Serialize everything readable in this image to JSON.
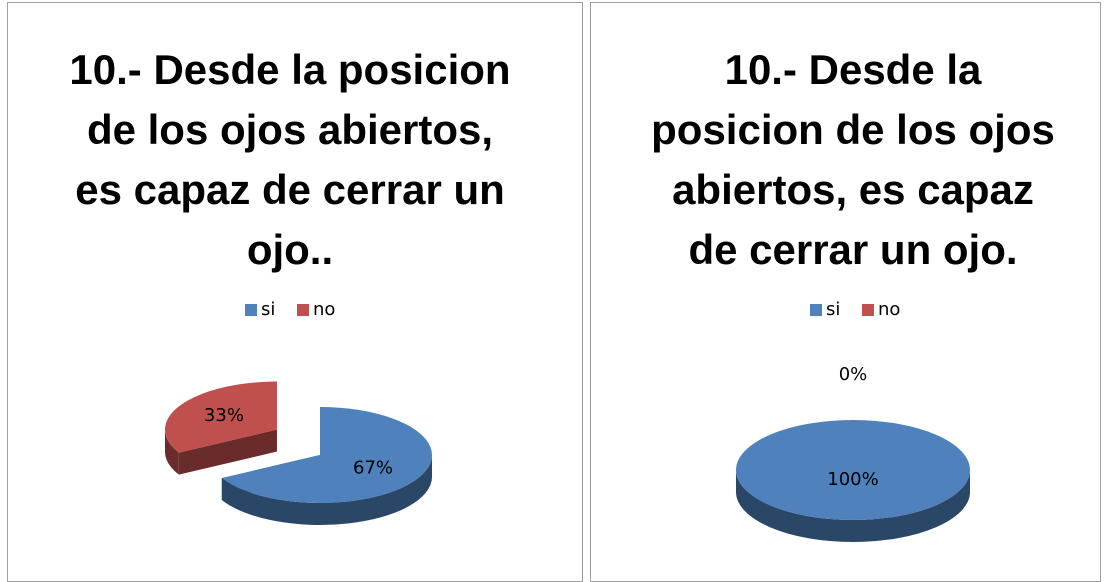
{
  "chart_data": [
    {
      "type": "pie",
      "title": "10.- Desde la posicion de los ojos abiertos, es capaz de cerrar un ojo..",
      "categories": [
        "si",
        "no"
      ],
      "values": [
        67,
        33
      ],
      "value_labels": [
        "67%",
        "33%"
      ],
      "colors": [
        "#4f81bd",
        "#c0504d"
      ],
      "legend": "top"
    },
    {
      "type": "pie",
      "title": "10.- Desde la posicion de los ojos abiertos, es capaz de cerrar un ojo.",
      "categories": [
        "si",
        "no"
      ],
      "values": [
        100,
        0
      ],
      "value_labels": [
        "100%",
        "0%"
      ],
      "colors": [
        "#4f81bd",
        "#c0504d"
      ],
      "legend": "top"
    }
  ]
}
